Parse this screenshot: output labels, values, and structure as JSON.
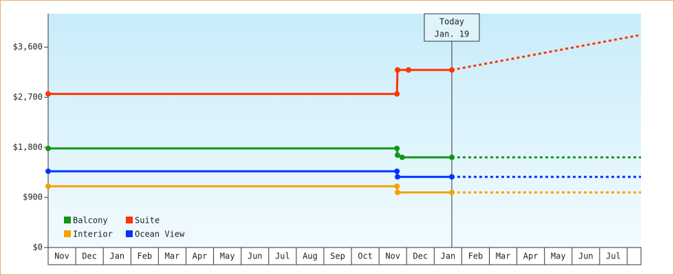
{
  "chart_data": {
    "type": "line",
    "annotation": [
      "Today",
      "Jan. 19"
    ],
    "today": 14.64,
    "xlim": [
      0,
      21.5
    ],
    "xticks": [
      {
        "value": 0,
        "label": "Nov"
      },
      {
        "value": 1,
        "label": "Dec"
      },
      {
        "value": 2,
        "label": "Jan"
      },
      {
        "value": 3,
        "label": "Feb"
      },
      {
        "value": 4,
        "label": "Mar"
      },
      {
        "value": 5,
        "label": "Apr"
      },
      {
        "value": 6,
        "label": "May"
      },
      {
        "value": 7,
        "label": "Jun"
      },
      {
        "value": 8,
        "label": "Jul"
      },
      {
        "value": 9,
        "label": "Aug"
      },
      {
        "value": 10,
        "label": "Sep"
      },
      {
        "value": 11,
        "label": "Oct"
      },
      {
        "value": 12,
        "label": "Nov"
      },
      {
        "value": 13,
        "label": "Dec"
      },
      {
        "value": 14,
        "label": "Jan"
      },
      {
        "value": 15,
        "label": "Feb"
      },
      {
        "value": 16,
        "label": "Mar"
      },
      {
        "value": 17,
        "label": "Apr"
      },
      {
        "value": 18,
        "label": "May"
      },
      {
        "value": 19,
        "label": "Jun"
      },
      {
        "value": 20,
        "label": "Jul"
      },
      {
        "value": 21
      }
    ],
    "ylim": [
      0,
      4200
    ],
    "yticks": [
      {
        "value": 0,
        "label": "$0"
      },
      {
        "value": 900,
        "label": "$900"
      },
      {
        "value": 1800,
        "label": "$1,800"
      },
      {
        "value": 2700,
        "label": "$2,700"
      },
      {
        "value": 3600,
        "label": "$3,600"
      }
    ],
    "series": [
      {
        "name": "Balcony",
        "color": "#109618",
        "x": [
          0,
          12.65,
          12.67,
          12.84,
          14.64,
          21.5
        ],
        "values": [
          1780,
          1780,
          1660,
          1620,
          1620,
          1620
        ]
      },
      {
        "name": "Suite",
        "color": "#ff3300",
        "x": [
          0,
          12.65,
          12.67,
          13.07,
          14.64,
          21.5
        ],
        "values": [
          2760,
          2760,
          3190,
          3190,
          3190,
          3820
        ]
      },
      {
        "name": "Interior",
        "color": "#f5a000",
        "x": [
          0,
          12.65,
          12.67,
          14.64,
          21.5
        ],
        "values": [
          1100,
          1100,
          990,
          990,
          990
        ]
      },
      {
        "name": "Ocean View",
        "color": "#0033ff",
        "x": [
          0,
          12.65,
          12.67,
          14.64,
          21.5
        ],
        "values": [
          1370,
          1370,
          1270,
          1270,
          1270
        ]
      }
    ]
  }
}
